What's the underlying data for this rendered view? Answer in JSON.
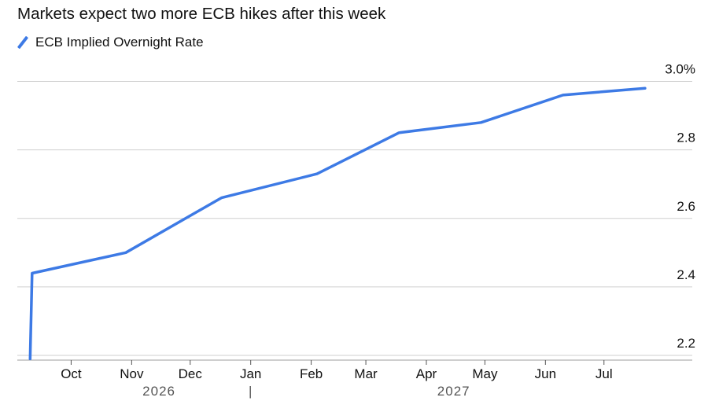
{
  "title": "Markets expect two more ECB hikes after this week",
  "legend": {
    "label": "ECB Implied Overnight Rate"
  },
  "colors": {
    "series": "#3d7ae5",
    "grid": "#cfcfcf"
  },
  "chart_data": {
    "type": "line",
    "title": "Markets expect two more ECB hikes after this week",
    "xlabel": "",
    "ylabel": "",
    "y_tick_labels": [
      "3.0%",
      "2.8",
      "2.6",
      "2.4",
      "2.2"
    ],
    "y_ticks": [
      3.0,
      2.8,
      2.6,
      2.4,
      2.2
    ],
    "ylim": [
      2.18,
      3.03
    ],
    "x_tick_labels": [
      "Oct",
      "Nov",
      "Dec",
      "Jan",
      "Feb",
      "Mar",
      "Apr",
      "May",
      "Jun",
      "Jul"
    ],
    "year_labels": [
      "2026",
      "|",
      "2027"
    ],
    "grid": true,
    "legend_position": "top-left",
    "series": [
      {
        "name": "ECB Implied Overnight Rate",
        "x": [
          "2026-09-10",
          "2026-09-11",
          "2026-10-29",
          "2026-12-17",
          "2027-02-04",
          "2027-03-18",
          "2027-04-29",
          "2027-06-10",
          "2027-07-22"
        ],
        "y": [
          2.19,
          2.44,
          2.5,
          2.66,
          2.73,
          2.85,
          2.88,
          2.96,
          2.98
        ]
      }
    ]
  }
}
